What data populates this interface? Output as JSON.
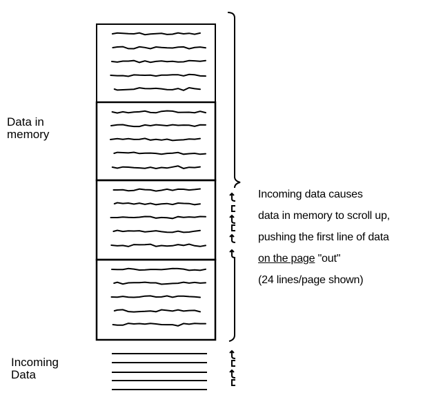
{
  "labels": {
    "data_in_memory": "Data in\nmemory",
    "incoming_data": "Incoming\nData",
    "note": {
      "line1": "Incoming data causes",
      "line2": "data in memory to scroll up,",
      "line3": "pushing the first line of data",
      "line4_underlined": "on the page",
      "line4_rest": " \"out\"",
      "line5": "(24 lines/page shown)"
    }
  }
}
